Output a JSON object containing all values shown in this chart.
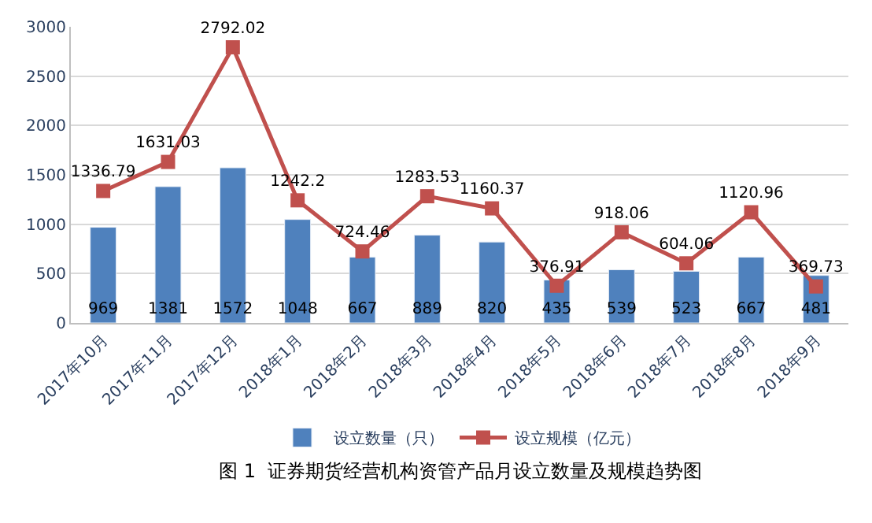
{
  "chart_data": {
    "type": "bar",
    "categories": [
      "2017年10月",
      "2017年11月",
      "2017年12月",
      "2018年1月",
      "2018年2月",
      "2018年3月",
      "2018年4月",
      "2018年5月",
      "2018年6月",
      "2018年7月",
      "2018年8月",
      "2018年9月"
    ],
    "series": [
      {
        "name": "设立数量（只）",
        "color": "#4f81bd",
        "values": [
          969,
          1381,
          1572,
          1048,
          667,
          889,
          820,
          435,
          539,
          523,
          667,
          481
        ]
      },
      {
        "name": "设立规模（亿元）",
        "type": "line",
        "color": "#c0504d",
        "marker": "square",
        "line_style": "solid",
        "values": [
          1336.79,
          1631.03,
          2792.02,
          1242.2,
          724.46,
          1283.53,
          1160.37,
          376.91,
          918.06,
          604.06,
          1120.96,
          369.73
        ]
      }
    ],
    "ylim": [
      0,
      3000
    ],
    "yticks": [
      0,
      500,
      1000,
      1500,
      2000,
      2500,
      3000
    ],
    "grid": "y",
    "legend": "bottom",
    "data_labels": true,
    "annotations": [
      "图 1  证券期货经营机构资管产品月设立数量及规模趋势图"
    ]
  }
}
